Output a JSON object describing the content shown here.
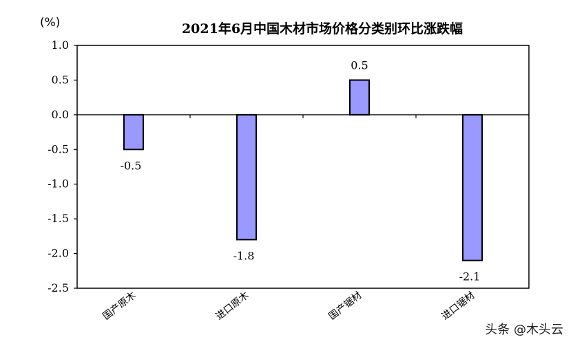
{
  "chart_data": {
    "type": "bar",
    "title": "2021年6月中国木材市场价格分类别环比涨跌幅",
    "unit": "(%)",
    "categories": [
      "国产原木",
      "进口原木",
      "国产锯材",
      "进口锯材"
    ],
    "values": [
      -0.5,
      -1.8,
      0.5,
      -2.1
    ],
    "data_labels": [
      "-0.5",
      "-1.8",
      "0.5",
      "-2.1"
    ],
    "ylim": [
      -2.5,
      1.0
    ],
    "yticks": [
      1.0,
      0.5,
      0.0,
      -0.5,
      -1.0,
      -1.5,
      -2.0,
      -2.5
    ],
    "ytick_labels": [
      "1.0",
      "0.5",
      "0.0",
      "-0.5",
      "-1.0",
      "-1.5",
      "-2.0",
      "-2.5"
    ],
    "grid": false,
    "bar_color": "#9999ff"
  },
  "watermark": "头条 @木头云"
}
